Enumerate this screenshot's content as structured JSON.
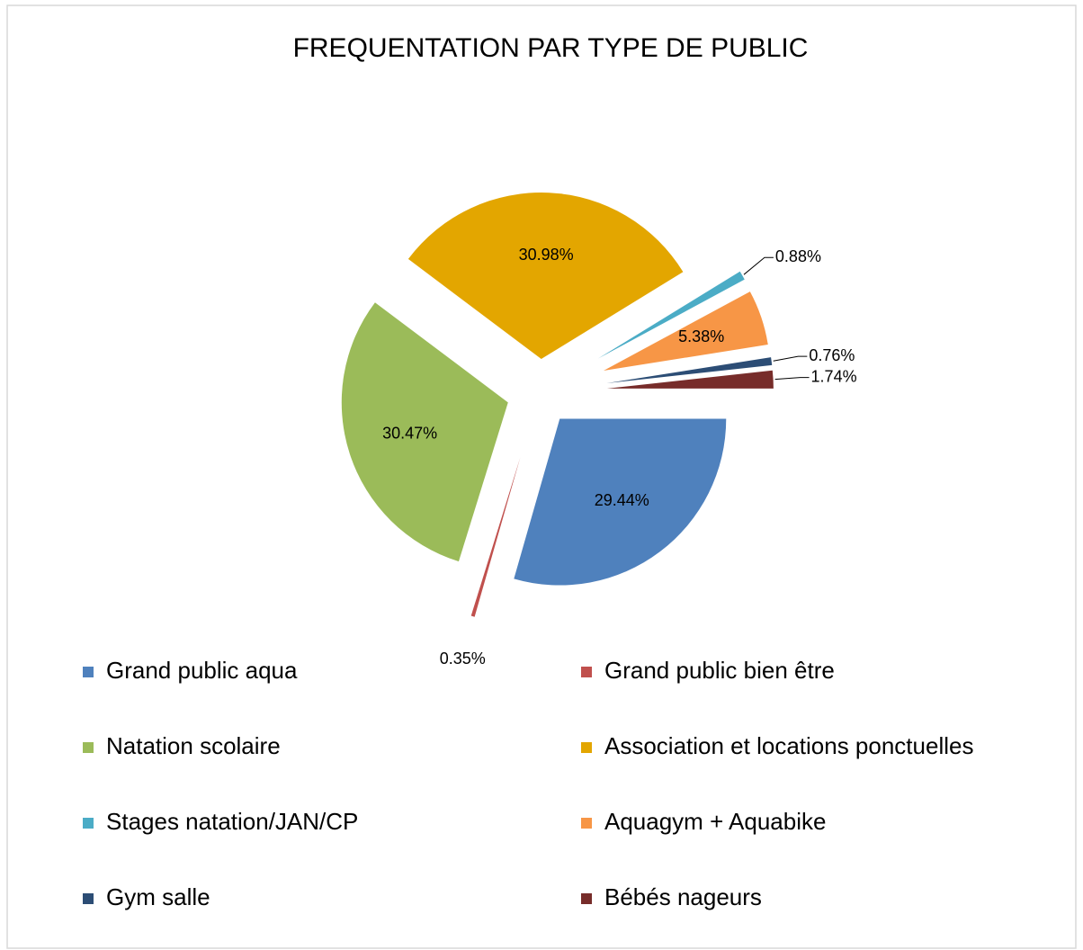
{
  "chart_data": {
    "type": "pie",
    "title": "FREQUENTATION PAR TYPE DE PUBLIC",
    "categories": [
      "Grand public aqua",
      "Grand public bien être",
      "Natation scolaire",
      "Association et locations ponctuelles",
      "Stages natation/JAN/CP",
      "Aquagym + Aquabike",
      "Gym salle",
      "Bébés nageurs"
    ],
    "values": [
      29.44,
      0.35,
      30.47,
      30.98,
      0.88,
      5.38,
      0.76,
      1.74
    ],
    "value_labels": [
      "29.44%",
      "0.35%",
      "30.47%",
      "30.98%",
      "0.88%",
      "5.38%",
      "0.76%",
      "1.74%"
    ],
    "colors": [
      "#4f81bd",
      "#c0504d",
      "#9bbb59",
      "#e3a600",
      "#4bacc6",
      "#f79646",
      "#2c4d75",
      "#772c2a"
    ],
    "legend": "bottom"
  }
}
